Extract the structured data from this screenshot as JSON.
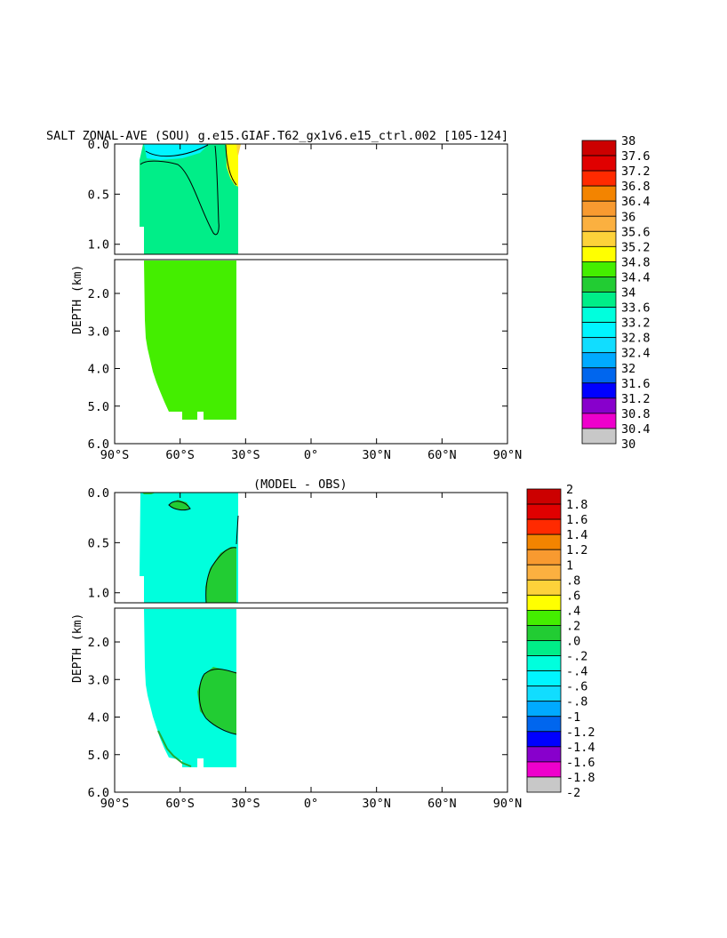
{
  "chart_data": [
    {
      "type": "heatmap",
      "title": "SALT ZONAL-AVE (SOU) g.e15.GIAF.T62_gx1v6.e15_ctrl.002 [105-124]",
      "ylabel": "DEPTH (km)",
      "xlabel": "",
      "x_ticks": [
        "90°S",
        "60°S",
        "30°S",
        "0°",
        "30°N",
        "60°N",
        "90°N"
      ],
      "y_ticks_upper": [
        "0.0",
        "0.5",
        "1.0"
      ],
      "y_ticks_lower": [
        "2.0",
        "3.0",
        "4.0",
        "5.0",
        "6.0"
      ],
      "xlim": [
        -90,
        90
      ],
      "ylim_upper_km": [
        0,
        1.1
      ],
      "ylim_lower_km": [
        1.1,
        6.0
      ],
      "colorbar": {
        "labels": [
          "38",
          "37.6",
          "37.2",
          "36.8",
          "36.4",
          "36",
          "35.6",
          "35.2",
          "34.8",
          "34.4",
          "34",
          "33.6",
          "33.2",
          "32.8",
          "32.4",
          "32",
          "31.6",
          "31.2",
          "30.8",
          "30.4",
          "30"
        ],
        "colors": [
          "#cc0000",
          "#e00000",
          "#ff2a00",
          "#f38400",
          "#f89a30",
          "#fbb040",
          "#fdd23a",
          "#ffff00",
          "#44ee00",
          "#22cc33",
          "#00ee88",
          "#00ffdd",
          "#00f5ff",
          "#11ddff",
          "#00aaff",
          "#0066ee",
          "#0000ff",
          "#8800cc",
          "#ee00cc",
          "#c8c8c8",
          "#6e6e6e"
        ]
      }
    },
    {
      "type": "heatmap",
      "title": "(MODEL - OBS)",
      "ylabel": "DEPTH (km)",
      "xlabel": "",
      "x_ticks": [
        "90°S",
        "60°S",
        "30°S",
        "0°",
        "30°N",
        "60°N",
        "90°N"
      ],
      "y_ticks_upper": [
        "0.0",
        "0.5",
        "1.0"
      ],
      "y_ticks_lower": [
        "2.0",
        "3.0",
        "4.0",
        "5.0",
        "6.0"
      ],
      "xlim": [
        -90,
        90
      ],
      "ylim_upper_km": [
        0,
        1.1
      ],
      "ylim_lower_km": [
        1.1,
        6.0
      ],
      "colorbar": {
        "labels": [
          "2",
          "1.8",
          "1.6",
          "1.4",
          "1.2",
          "1",
          ".8",
          ".6",
          ".4",
          ".2",
          ".0",
          "-.2",
          "-.4",
          "-.6",
          "-.8",
          "-1",
          "-1.2",
          "-1.4",
          "-1.6",
          "-1.8",
          "-2"
        ],
        "colors": [
          "#cc0000",
          "#e00000",
          "#ff2a00",
          "#f38400",
          "#f89a30",
          "#fbb040",
          "#fdd23a",
          "#ffff00",
          "#44ee00",
          "#22cc33",
          "#00ee88",
          "#00ffdd",
          "#00f5ff",
          "#11ddff",
          "#00aaff",
          "#0066ee",
          "#0000ff",
          "#8800cc",
          "#ee00cc",
          "#c8c8c8",
          "#6e6e6e"
        ]
      }
    }
  ]
}
